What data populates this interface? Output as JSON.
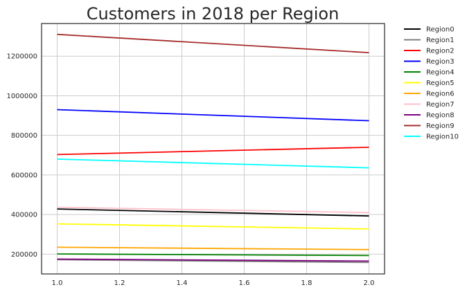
{
  "chart_data": {
    "type": "line",
    "title": "Customers in 2018 per Region",
    "xlabel": "",
    "ylabel": "",
    "xlim": [
      0.95,
      2.05
    ],
    "ylim": [
      100000,
      1365000
    ],
    "xticks": [
      1.0,
      1.2,
      1.4,
      1.6,
      1.8,
      2.0
    ],
    "xtick_labels": [
      "1.0",
      "1.2",
      "1.4",
      "1.6",
      "1.8",
      "2.0"
    ],
    "yticks": [
      200000,
      400000,
      600000,
      800000,
      1000000,
      1200000
    ],
    "ytick_labels": [
      "200000",
      "400000",
      "600000",
      "800000",
      "1000000",
      "1200000"
    ],
    "grid": true,
    "legend_position": "outside-top-right",
    "x": [
      1.0,
      2.0
    ],
    "series": [
      {
        "name": "Region0",
        "color": "#000000",
        "values": [
          428000,
          393000
        ]
      },
      {
        "name": "Region1",
        "color": "#808080",
        "values": [
          172000,
          158000
        ]
      },
      {
        "name": "Region2",
        "color": "#ff0000",
        "values": [
          703000,
          740000
        ]
      },
      {
        "name": "Region3",
        "color": "#0000ff",
        "values": [
          930000,
          874000
        ]
      },
      {
        "name": "Region4",
        "color": "#008000",
        "values": [
          201000,
          193000
        ]
      },
      {
        "name": "Region5",
        "color": "#ffff00",
        "values": [
          353000,
          327000
        ]
      },
      {
        "name": "Region6",
        "color": "#ffa500",
        "values": [
          235000,
          223000
        ]
      },
      {
        "name": "Region7",
        "color": "#ffc0cb",
        "values": [
          437000,
          410000
        ]
      },
      {
        "name": "Region8",
        "color": "#800080",
        "values": [
          175000,
          165000
        ]
      },
      {
        "name": "Region9",
        "color": "#a52a2a",
        "values": [
          1310000,
          1218000
        ]
      },
      {
        "name": "Region10",
        "color": "#00ffff",
        "values": [
          680000,
          636000
        ]
      }
    ]
  }
}
